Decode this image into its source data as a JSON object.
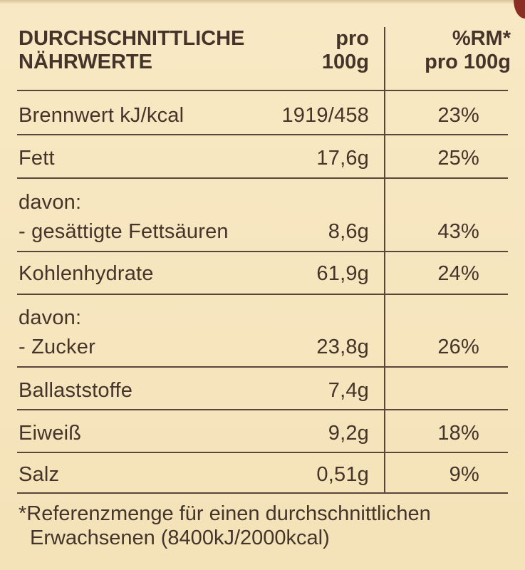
{
  "table": {
    "header": {
      "name_line1": "DURCHSCHNITTLICHE",
      "name_line2": "NÄHRWERTE",
      "value_line1": "pro",
      "value_line2": "100g",
      "rm_line1": "%RM*",
      "rm_line2": "pro 100g"
    },
    "rows": [
      {
        "name": "Brennwert kJ/kcal",
        "value": "1919/458",
        "rm": "23%"
      },
      {
        "name": "Fett",
        "value": "17,6g",
        "rm": "25%"
      },
      {
        "name_line1": "davon:",
        "name_line2": "- gesättigte Fettsäuren",
        "value": "8,6g",
        "rm": "43%"
      },
      {
        "name": "Kohlenhydrate",
        "value": "61,9g",
        "rm": "24%"
      },
      {
        "name_line1": "davon:",
        "name_line2": "- Zucker",
        "value": "23,8g",
        "rm": "26%"
      },
      {
        "name": "Ballaststoffe",
        "value": "7,4g",
        "rm": ""
      },
      {
        "name": "Eiweiß",
        "value": "9,2g",
        "rm": "18%"
      },
      {
        "name": "Salz",
        "value": "0,51g",
        "rm": "9%"
      }
    ]
  },
  "footnote": {
    "line1": "*Referenzmenge für einen durchschnittlichen",
    "line2": "Erwachsenen (8400kJ/2000kcal)"
  }
}
